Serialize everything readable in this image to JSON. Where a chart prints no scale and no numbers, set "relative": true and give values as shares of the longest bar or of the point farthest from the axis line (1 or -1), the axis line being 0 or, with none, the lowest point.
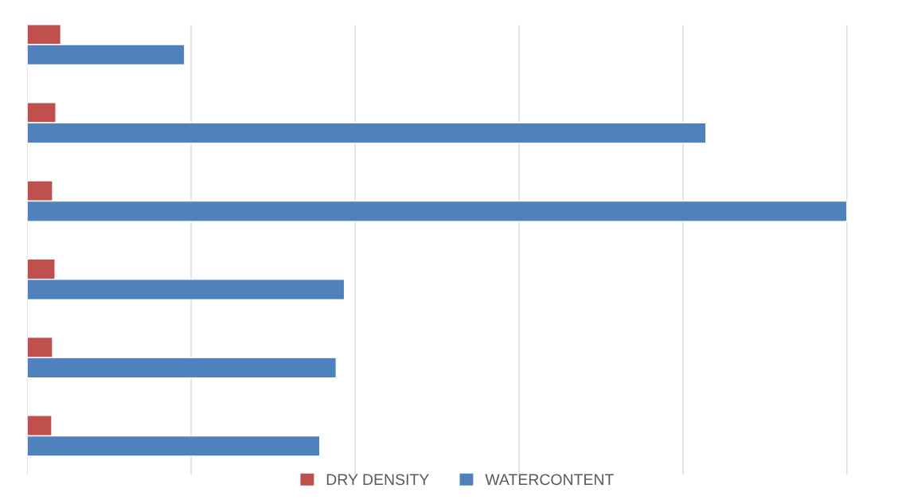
{
  "chart_data": {
    "type": "bar",
    "orientation": "horizontal",
    "relative": true,
    "categories": [
      null,
      null,
      null,
      null,
      null,
      null
    ],
    "series": [
      {
        "name": "DRY DENSITY",
        "color": "#c0504d",
        "values": [
          0.041,
          0.035,
          0.031,
          0.034,
          0.031,
          0.03
        ]
      },
      {
        "name": "WATERCONTENT",
        "color": "#4f81bd",
        "values": [
          0.192,
          0.828,
          1.0,
          0.387,
          0.377,
          0.357
        ]
      }
    ],
    "grid": "x",
    "legend": "bottom"
  }
}
